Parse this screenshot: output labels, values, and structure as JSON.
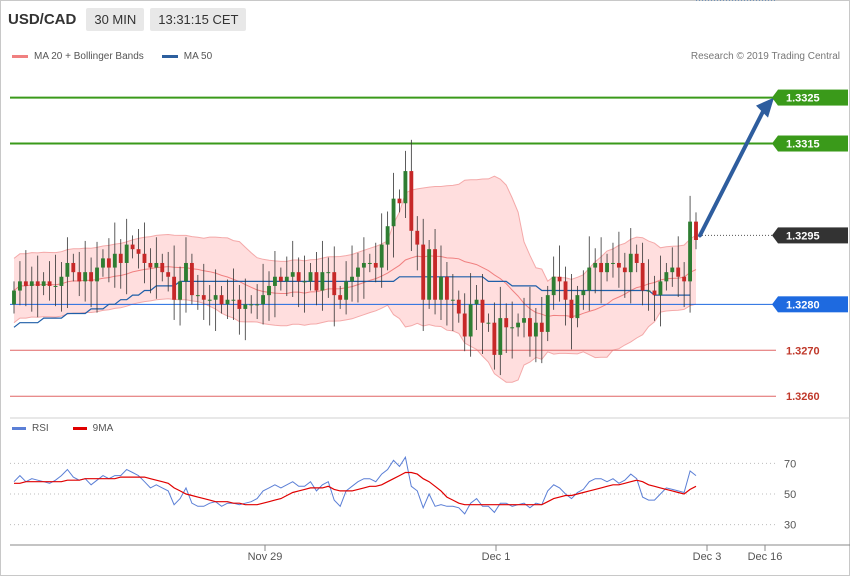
{
  "header": {
    "symbol": "USD/CAD",
    "timeframe": "30 MIN",
    "time": "13:31:15 CET"
  },
  "legend": {
    "bollinger": "MA 20 + Bollinger Bands",
    "ma50": "MA 50",
    "research": "Research © 2019 Trading Central"
  },
  "rsi_legend": {
    "rsi": "RSI",
    "ma9": "9MA"
  },
  "colors": {
    "up": "#2e7d32",
    "down": "#c62828",
    "band": "#ffd0d0",
    "ma50": "#1f5fa8",
    "arrow": "#2e5d9e",
    "resistance": "#3a9a1a",
    "support_line": "#e06666",
    "pivot": "#1e6ae0"
  },
  "chart_data": [
    {
      "type": "candlestick",
      "title": "",
      "ylim": [
        1.3257,
        1.3331
      ],
      "y_ticks": [
        1.326,
        1.327,
        1.328,
        1.3295,
        1.3315,
        1.3325
      ],
      "x_labels": [
        "Nov 29",
        "Dec 1",
        "Dec 3",
        "Dec 16"
      ],
      "levels": [
        {
          "label": "1.3325",
          "value": 1.3325,
          "role": "resistance"
        },
        {
          "label": "1.3315",
          "value": 1.3315,
          "role": "resistance"
        },
        {
          "label": "1.3295",
          "value": 1.3295,
          "role": "current"
        },
        {
          "label": "1.3280",
          "value": 1.328,
          "role": "pivot"
        },
        {
          "label": "1.3270",
          "value": 1.327,
          "role": "support"
        },
        {
          "label": "1.3260",
          "value": 1.326,
          "role": "support"
        }
      ],
      "arrow": {
        "from": 1.3295,
        "to": 1.3325,
        "direction": "up"
      },
      "close": [
        1.3283,
        1.3285,
        1.3284,
        1.3285,
        1.3284,
        1.3285,
        1.3284,
        1.3284,
        1.3286,
        1.3289,
        1.3287,
        1.3285,
        1.3287,
        1.3285,
        1.3288,
        1.329,
        1.3288,
        1.3291,
        1.3289,
        1.3293,
        1.3292,
        1.3291,
        1.3289,
        1.3288,
        1.3289,
        1.3287,
        1.3286,
        1.3281,
        1.3285,
        1.3289,
        1.3282,
        1.3282,
        1.3281,
        1.3281,
        1.3282,
        1.328,
        1.3281,
        1.3281,
        1.3279,
        1.328,
        1.328,
        1.328,
        1.3282,
        1.3284,
        1.3286,
        1.3285,
        1.3286,
        1.3287,
        1.3285,
        1.3285,
        1.3287,
        1.3283,
        1.3287,
        1.3287,
        1.3282,
        1.3281,
        1.3285,
        1.3286,
        1.3288,
        1.3289,
        1.3289,
        1.3288,
        1.3293,
        1.3297,
        1.3303,
        1.3302,
        1.3309,
        1.3296,
        1.3293,
        1.3281,
        1.3292,
        1.3281,
        1.3286,
        1.3281,
        1.3281,
        1.3278,
        1.3273,
        1.328,
        1.3281,
        1.3276,
        1.3276,
        1.3269,
        1.3277,
        1.3275,
        1.3275,
        1.3276,
        1.3277,
        1.3273,
        1.3276,
        1.3274,
        1.3282,
        1.3286,
        1.3285,
        1.3281,
        1.3277,
        1.3282,
        1.3283,
        1.3288,
        1.3289,
        1.3287,
        1.3289,
        1.3289,
        1.3288,
        1.3287,
        1.3291,
        1.3289,
        1.3283,
        1.3283,
        1.3282,
        1.3285,
        1.3287,
        1.3288,
        1.3286,
        1.3285,
        1.3298,
        1.3294
      ],
      "ma50": [
        1.3275,
        1.3276,
        1.3276,
        1.3276,
        1.3276,
        1.3277,
        1.3277,
        1.3277,
        1.3277,
        1.3278,
        1.3278,
        1.3278,
        1.3278,
        1.3279,
        1.3279,
        1.3279,
        1.328,
        1.328,
        1.3281,
        1.3281,
        1.3282,
        1.3282,
        1.3283,
        1.3283,
        1.3284,
        1.3284,
        1.3284,
        1.3284,
        1.3285,
        1.3285,
        1.3285,
        1.3285,
        1.3285,
        1.3285,
        1.3285,
        1.3285,
        1.3285,
        1.3285,
        1.3285,
        1.3285,
        1.3285,
        1.3285,
        1.3285,
        1.3285,
        1.3285,
        1.3285,
        1.3285,
        1.3285,
        1.3285,
        1.3285,
        1.3285,
        1.3285,
        1.3285,
        1.3285,
        1.3285,
        1.3285,
        1.3285,
        1.3285,
        1.3285,
        1.3285,
        1.3285,
        1.3285,
        1.3285,
        1.3285,
        1.3285,
        1.3286,
        1.3286,
        1.3286,
        1.3286,
        1.3286,
        1.3286,
        1.3286,
        1.3286,
        1.3286,
        1.3286,
        1.3286,
        1.3286,
        1.3286,
        1.3286,
        1.3286,
        1.3285,
        1.3285,
        1.3285,
        1.3285,
        1.3284,
        1.3284,
        1.3284,
        1.3284,
        1.3284,
        1.3283,
        1.3283,
        1.3283,
        1.3283,
        1.3283,
        1.3283,
        1.3283,
        1.3283,
        1.3283,
        1.3283,
        1.3283,
        1.3283,
        1.3283,
        1.3283,
        1.3283,
        1.3283,
        1.3283,
        1.3283,
        1.3283,
        1.3282,
        1.3282,
        1.3282,
        1.3282,
        1.3282,
        1.3282,
        1.3282
      ]
    },
    {
      "type": "line",
      "title": "",
      "ylim": [
        20,
        80
      ],
      "y_ticks": [
        30,
        50,
        70
      ],
      "series": [
        {
          "name": "RSI",
          "values": [
            58,
            62,
            58,
            60,
            59,
            58,
            57,
            59,
            62,
            66,
            61,
            59,
            60,
            56,
            59,
            62,
            60,
            62,
            62,
            66,
            64,
            62,
            58,
            54,
            56,
            54,
            52,
            43,
            47,
            54,
            44,
            42,
            42,
            44,
            45,
            42,
            44,
            44,
            43,
            44,
            45,
            47,
            52,
            54,
            56,
            54,
            56,
            58,
            55,
            55,
            58,
            52,
            56,
            58,
            46,
            42,
            52,
            55,
            58,
            60,
            60,
            58,
            63,
            66,
            72,
            68,
            74,
            55,
            52,
            41,
            50,
            42,
            43,
            42,
            42,
            41,
            37,
            44,
            47,
            42,
            42,
            38,
            44,
            44,
            42,
            43,
            44,
            41,
            44,
            43,
            52,
            56,
            54,
            50,
            47,
            51,
            53,
            58,
            60,
            60,
            58,
            60,
            57,
            59,
            63,
            60,
            48,
            46,
            46,
            50,
            54,
            53,
            52,
            51,
            65,
            62
          ]
        },
        {
          "name": "9MA",
          "values": [
            57,
            57,
            58,
            58,
            58,
            58,
            58,
            58,
            58,
            59,
            59,
            59,
            60,
            60,
            60,
            60,
            60,
            60,
            61,
            61,
            61,
            61,
            61,
            60,
            59,
            58,
            57,
            54,
            52,
            50,
            49,
            48,
            47,
            46,
            45,
            45,
            45,
            44,
            44,
            43,
            43,
            43,
            44,
            45,
            46,
            47,
            49,
            51,
            52,
            53,
            54,
            54,
            54,
            55,
            53,
            52,
            52,
            52,
            53,
            54,
            55,
            55,
            56,
            58,
            60,
            62,
            64,
            64,
            63,
            60,
            58,
            55,
            52,
            48,
            46,
            44,
            43,
            43,
            43,
            43,
            43,
            43,
            43,
            43,
            43,
            43,
            43,
            43,
            43,
            43,
            45,
            47,
            48,
            49,
            49,
            50,
            51,
            52,
            53,
            54,
            55,
            56,
            56,
            57,
            58,
            59,
            58,
            56,
            55,
            54,
            53,
            52,
            51,
            50,
            53,
            55
          ]
        }
      ]
    }
  ]
}
